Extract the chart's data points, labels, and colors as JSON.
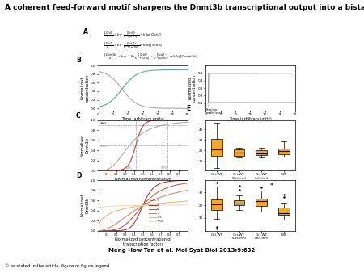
{
  "title": "A coherent feed-forward motif sharpens the Dnmt3b transcriptional output into a bistable switch.",
  "citation": "Meng How Tan et al. Mol Syst Biol 2013;9:632",
  "copyright": "© as stated in the article, figure or figure legend",
  "bg_color": "#ffffff",
  "line_color_teal": "#5ba8a0",
  "line_color_gray": "#aaaaaa",
  "line_color_darkgray": "#888888",
  "line_color_red": "#cc3333",
  "line_color_lightgray": "#cccccc",
  "box_color_orange": "#f5a623",
  "logo_bg": "#1a6fa8",
  "title_fontsize": 6.5,
  "label_fontsize": 3.5,
  "tick_fontsize": 3.0,
  "panel_label_fontsize": 5.5
}
